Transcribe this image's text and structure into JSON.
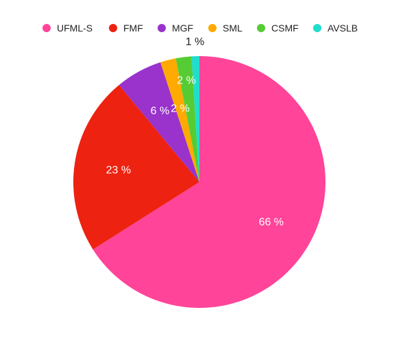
{
  "chart_data": {
    "type": "pie",
    "title": "",
    "legend_position": "top",
    "series": [
      {
        "label": "UFML-S",
        "value": 66,
        "value_label": "66 %",
        "color": "#ff4499"
      },
      {
        "label": "FMF",
        "value": 23,
        "value_label": "23 %",
        "color": "#ee2211"
      },
      {
        "label": "MGF",
        "value": 6,
        "value_label": "6 %",
        "color": "#9933cc"
      },
      {
        "label": "SML",
        "value": 2,
        "value_label": "2 %",
        "color": "#ffaa00"
      },
      {
        "label": "CSMF",
        "value": 2,
        "value_label": "2 %",
        "color": "#55cc33"
      },
      {
        "label": "AVSLB",
        "value": 1,
        "value_label": "1 %",
        "color": "#22ddcc"
      }
    ]
  }
}
